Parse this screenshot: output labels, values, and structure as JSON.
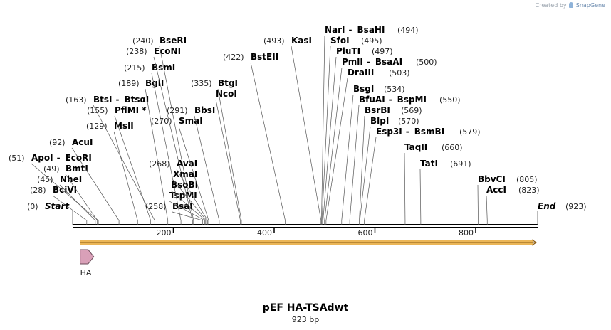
{
  "watermark": {
    "prefix": "Created by",
    "brand": "SnapGene"
  },
  "plasmid": {
    "name": "pEF HA-TSAdwt",
    "size_label": "923 bp",
    "length": 923
  },
  "ends": {
    "start": {
      "label": "Start",
      "pos_label": "(0)"
    },
    "end": {
      "label": "End",
      "pos_label": "(923)"
    }
  },
  "ruler": {
    "ticks": [
      200,
      400,
      600,
      800
    ]
  },
  "features": [
    {
      "name": "HA",
      "start": 15,
      "end": 42,
      "color": "#d9a0b8",
      "direction": "forward"
    }
  ],
  "orf": {
    "start": 15,
    "end": 920,
    "color": "#e7a93a"
  },
  "sites": [
    {
      "names": [
        "BciVI"
      ],
      "pos": 28,
      "pos_label": "(28)"
    },
    {
      "names": [
        "NheI"
      ],
      "pos": 45,
      "pos_label": "(45)"
    },
    {
      "names": [
        "BmtI"
      ],
      "pos": 49,
      "pos_label": "(49)"
    },
    {
      "names": [
        "ApoI",
        "EcoRI"
      ],
      "pos": 51,
      "pos_label": "(51)"
    },
    {
      "names": [
        "AcuI"
      ],
      "pos": 92,
      "pos_label": "(92)"
    },
    {
      "names": [
        "MslI"
      ],
      "pos": 129,
      "pos_label": "(129)"
    },
    {
      "names": [
        "PflMI *"
      ],
      "pos": 155,
      "pos_label": "(155)"
    },
    {
      "names": [
        "BtsI",
        "BtsαI"
      ],
      "pos": 163,
      "pos_label": "(163)"
    },
    {
      "names": [
        "BglI"
      ],
      "pos": 189,
      "pos_label": "(189)"
    },
    {
      "names": [
        "BsmI"
      ],
      "pos": 215,
      "pos_label": "(215)"
    },
    {
      "names": [
        "EcoNI"
      ],
      "pos": 238,
      "pos_label": "(238)"
    },
    {
      "names": [
        "BseRI"
      ],
      "pos": 240,
      "pos_label": "(240)"
    },
    {
      "names": [
        "BsaI"
      ],
      "pos": 258,
      "pos_label": "(258)"
    },
    {
      "names": [
        "TspMI"
      ],
      "pos": 262,
      "pos_label": ""
    },
    {
      "names": [
        "BsoBI"
      ],
      "pos": 264,
      "pos_label": ""
    },
    {
      "names": [
        "XmaI"
      ],
      "pos": 266,
      "pos_label": ""
    },
    {
      "names": [
        "AvaI"
      ],
      "pos": 268,
      "pos_label": "(268)"
    },
    {
      "names": [
        "SmaI"
      ],
      "pos": 270,
      "pos_label": "(270)"
    },
    {
      "names": [
        "BbsI"
      ],
      "pos": 291,
      "pos_label": "(291)"
    },
    {
      "names": [
        "NcoI"
      ],
      "pos": 333,
      "pos_label": ""
    },
    {
      "names": [
        "BtgI"
      ],
      "pos": 335,
      "pos_label": "(335)"
    },
    {
      "names": [
        "BstEII"
      ],
      "pos": 422,
      "pos_label": "(422)"
    },
    {
      "names": [
        "KasI"
      ],
      "pos": 493,
      "pos_label": "(493)"
    },
    {
      "names": [
        "NarI",
        "BsaHI"
      ],
      "pos": 494,
      "pos_label": "(494)"
    },
    {
      "names": [
        "SfoI"
      ],
      "pos": 495,
      "pos_label": "(495)"
    },
    {
      "names": [
        "PluTI"
      ],
      "pos": 497,
      "pos_label": "(497)"
    },
    {
      "names": [
        "PmlI",
        "BsaAI"
      ],
      "pos": 500,
      "pos_label": "(500)"
    },
    {
      "names": [
        "DraIII"
      ],
      "pos": 503,
      "pos_label": "(503)"
    },
    {
      "names": [
        "BsgI"
      ],
      "pos": 534,
      "pos_label": "(534)"
    },
    {
      "names": [
        "BfuAI",
        "BspMI"
      ],
      "pos": 550,
      "pos_label": "(550)"
    },
    {
      "names": [
        "BsrBI"
      ],
      "pos": 569,
      "pos_label": "(569)"
    },
    {
      "names": [
        "BlpI"
      ],
      "pos": 570,
      "pos_label": "(570)"
    },
    {
      "names": [
        "Esp3I",
        "BsmBI"
      ],
      "pos": 579,
      "pos_label": "(579)"
    },
    {
      "names": [
        "TaqII"
      ],
      "pos": 660,
      "pos_label": "(660)"
    },
    {
      "names": [
        "TatI"
      ],
      "pos": 691,
      "pos_label": "(691)"
    },
    {
      "names": [
        "BbvCI"
      ],
      "pos": 805,
      "pos_label": "(805)"
    },
    {
      "names": [
        "AccI"
      ],
      "pos": 823,
      "pos_label": "(823)"
    }
  ]
}
